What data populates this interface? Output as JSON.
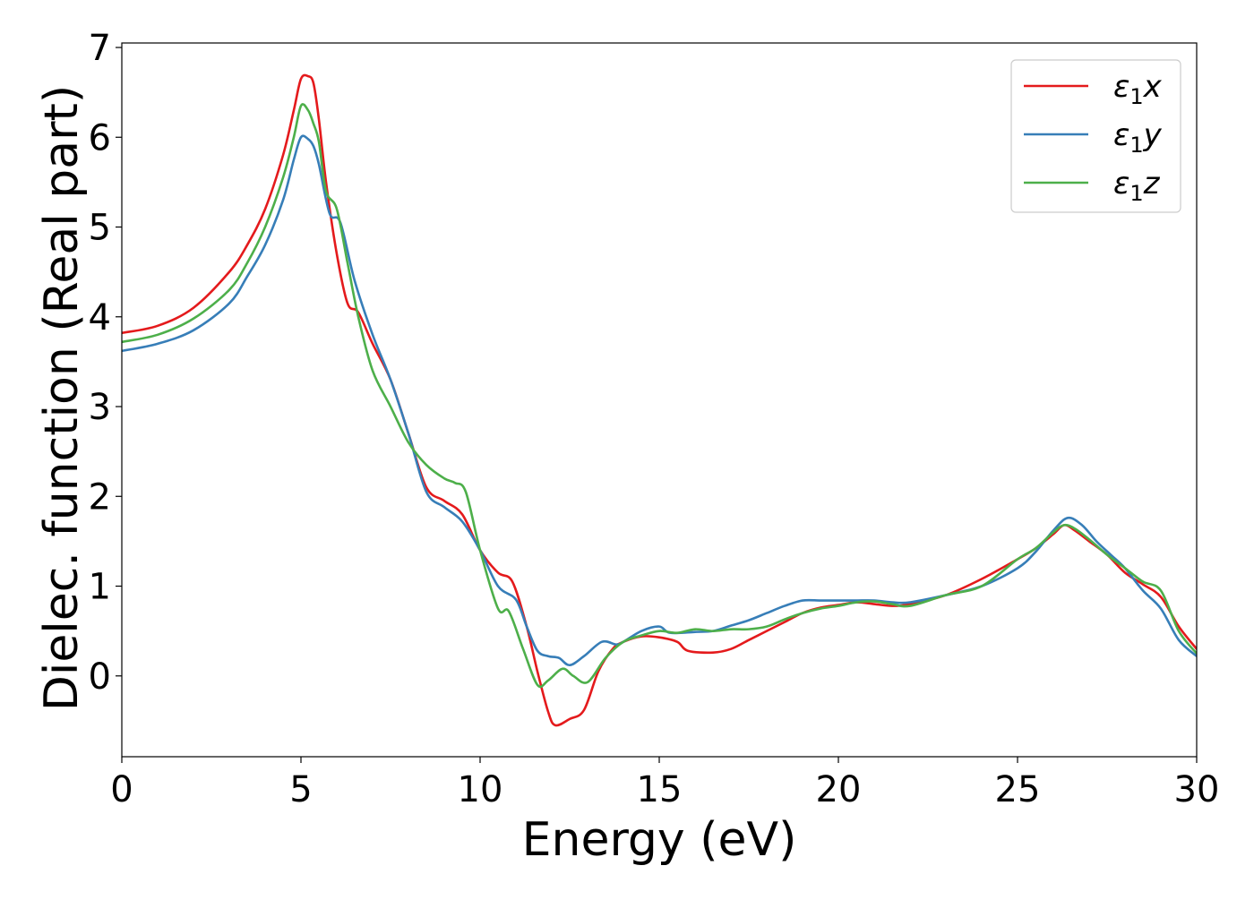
{
  "chart_data": {
    "type": "line",
    "title": "",
    "xlabel": "Energy (eV)",
    "ylabel": "Dielec. function (Real part)",
    "xlim": [
      0,
      30
    ],
    "ylim": [
      -0.9,
      7.05
    ],
    "xticks": [
      0,
      5,
      10,
      15,
      20,
      25,
      30
    ],
    "yticks": [
      0,
      1,
      2,
      3,
      4,
      5,
      6,
      7
    ],
    "grid": false,
    "legend_position": "top-right",
    "series": [
      {
        "name": "ε1x",
        "label_base": "ε",
        "label_sub": "1",
        "label_var": "x",
        "color": "#e41a1c",
        "x": [
          0,
          1,
          2,
          3,
          3.5,
          4,
          4.5,
          4.8,
          5.0,
          5.2,
          5.35,
          5.5,
          5.7,
          6.0,
          6.3,
          6.6,
          7.0,
          7.5,
          8.0,
          8.5,
          9.0,
          9.5,
          10.0,
          10.5,
          10.9,
          11.3,
          11.6,
          11.9,
          12.1,
          12.5,
          12.9,
          13.3,
          13.7,
          14.0,
          14.5,
          15.0,
          15.5,
          15.8,
          16.5,
          17.0,
          17.5,
          18.0,
          18.5,
          19.0,
          19.5,
          20.0,
          20.5,
          21.0,
          21.5,
          22.0,
          23.0,
          24.0,
          25.0,
          25.5,
          26.0,
          26.3,
          26.6,
          27.0,
          27.5,
          28.0,
          28.5,
          29.0,
          29.5,
          30.0
        ],
        "y": [
          3.82,
          3.9,
          4.1,
          4.5,
          4.8,
          5.2,
          5.8,
          6.3,
          6.65,
          6.68,
          6.6,
          6.2,
          5.5,
          4.7,
          4.15,
          4.05,
          3.7,
          3.3,
          2.7,
          2.1,
          1.95,
          1.8,
          1.4,
          1.15,
          1.05,
          0.55,
          0.05,
          -0.4,
          -0.55,
          -0.48,
          -0.38,
          0.05,
          0.3,
          0.38,
          0.44,
          0.43,
          0.38,
          0.28,
          0.26,
          0.3,
          0.4,
          0.5,
          0.6,
          0.7,
          0.76,
          0.79,
          0.82,
          0.8,
          0.78,
          0.8,
          0.9,
          1.08,
          1.3,
          1.42,
          1.58,
          1.68,
          1.62,
          1.5,
          1.35,
          1.15,
          1.02,
          0.88,
          0.55,
          0.3
        ]
      },
      {
        "name": "ε1y",
        "label_base": "ε",
        "label_sub": "1",
        "label_var": "y",
        "color": "#377eb8",
        "x": [
          0,
          1,
          2,
          3,
          3.5,
          4,
          4.5,
          4.8,
          5.0,
          5.2,
          5.35,
          5.5,
          5.8,
          6.1,
          6.5,
          7.0,
          7.5,
          8.0,
          8.5,
          9.0,
          9.5,
          10.0,
          10.5,
          11.0,
          11.3,
          11.6,
          11.9,
          12.2,
          12.5,
          12.9,
          13.4,
          13.8,
          14.0,
          14.5,
          15.0,
          15.3,
          16.0,
          16.5,
          17.0,
          17.5,
          18.0,
          18.5,
          19.0,
          19.5,
          20.0,
          20.5,
          21.0,
          21.5,
          22.0,
          23.0,
          24.0,
          25.0,
          25.5,
          26.0,
          26.4,
          26.8,
          27.2,
          27.6,
          28.0,
          28.5,
          29.0,
          29.5,
          30.0
        ],
        "y": [
          3.62,
          3.7,
          3.85,
          4.15,
          4.45,
          4.8,
          5.3,
          5.75,
          6.0,
          5.98,
          5.9,
          5.7,
          5.15,
          5.05,
          4.4,
          3.8,
          3.3,
          2.7,
          2.05,
          1.88,
          1.72,
          1.4,
          1.0,
          0.85,
          0.55,
          0.28,
          0.22,
          0.2,
          0.12,
          0.22,
          0.38,
          0.35,
          0.38,
          0.5,
          0.55,
          0.48,
          0.49,
          0.5,
          0.56,
          0.62,
          0.7,
          0.78,
          0.84,
          0.84,
          0.84,
          0.84,
          0.84,
          0.82,
          0.82,
          0.9,
          1.0,
          1.2,
          1.38,
          1.62,
          1.76,
          1.68,
          1.5,
          1.35,
          1.2,
          0.95,
          0.75,
          0.4,
          0.22
        ]
      },
      {
        "name": "ε1z",
        "label_base": "ε",
        "label_sub": "1",
        "label_var": "z",
        "color": "#4daf4a",
        "x": [
          0,
          1,
          2,
          3,
          3.5,
          4,
          4.5,
          4.8,
          5.0,
          5.2,
          5.35,
          5.5,
          5.7,
          6.0,
          6.3,
          6.6,
          7.0,
          7.5,
          8.0,
          8.5,
          9.0,
          9.3,
          9.6,
          10.0,
          10.5,
          10.8,
          11.2,
          11.6,
          11.9,
          12.3,
          12.6,
          13.0,
          13.5,
          14.0,
          14.5,
          15.0,
          15.5,
          16.0,
          16.5,
          17.0,
          17.5,
          18.0,
          18.5,
          19.0,
          19.5,
          20.0,
          20.5,
          21.0,
          21.5,
          22.0,
          23.0,
          24.0,
          25.0,
          25.5,
          26.0,
          26.3,
          26.6,
          27.0,
          27.5,
          28.0,
          28.5,
          29.0,
          29.5,
          30.0
        ],
        "y": [
          3.72,
          3.8,
          3.98,
          4.3,
          4.6,
          5.0,
          5.55,
          6.0,
          6.35,
          6.3,
          6.15,
          5.95,
          5.4,
          5.2,
          4.6,
          4.0,
          3.4,
          3.0,
          2.6,
          2.35,
          2.2,
          2.15,
          2.05,
          1.4,
          0.75,
          0.72,
          0.3,
          -0.1,
          -0.05,
          0.08,
          0.0,
          -0.07,
          0.2,
          0.38,
          0.45,
          0.5,
          0.48,
          0.52,
          0.5,
          0.52,
          0.52,
          0.55,
          0.63,
          0.7,
          0.75,
          0.78,
          0.82,
          0.83,
          0.8,
          0.78,
          0.9,
          1.0,
          1.3,
          1.42,
          1.6,
          1.68,
          1.64,
          1.52,
          1.35,
          1.2,
          1.05,
          0.95,
          0.5,
          0.25
        ]
      }
    ]
  }
}
